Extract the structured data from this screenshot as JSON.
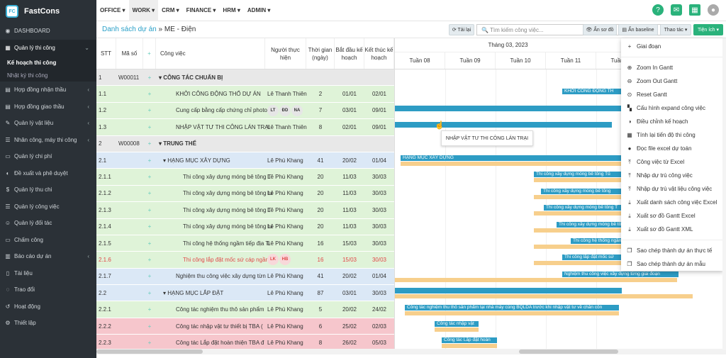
{
  "app": {
    "name": "FastCons",
    "logo_text": "FC"
  },
  "sidebar": {
    "items": [
      {
        "label": "DASHBOARD",
        "icon": "◉"
      },
      {
        "label": "Quản lý thi công",
        "icon": "▦",
        "chev": "⌄",
        "active": true
      },
      {
        "label": "Hợp đồng nhận thầu",
        "icon": "▤",
        "chev": "‹"
      },
      {
        "label": "Hợp đồng giao thầu",
        "icon": "▤",
        "chev": "‹"
      },
      {
        "label": "Quản lý vật liệu",
        "icon": "✎",
        "chev": "‹"
      },
      {
        "label": "Nhân công, máy thi công",
        "icon": "☰",
        "chev": "‹"
      },
      {
        "label": "Quản lý chi phí",
        "icon": "▭",
        "chev": ""
      },
      {
        "label": "Đề xuất và phê duyệt",
        "icon": "◐",
        "chev": ""
      },
      {
        "label": "Quản lý thu chi",
        "icon": "$",
        "chev": ""
      },
      {
        "label": "Quản lý công việc",
        "icon": "☰",
        "chev": ""
      },
      {
        "label": "Quản lý đối tác",
        "icon": "☺",
        "chev": ""
      },
      {
        "label": "Chấm công",
        "icon": "▭",
        "chev": ""
      },
      {
        "label": "Báo cáo dự án",
        "icon": "▥",
        "chev": "‹"
      },
      {
        "label": "Tài liệu",
        "icon": "▯",
        "chev": ""
      },
      {
        "label": "Trao đổi",
        "icon": "◌",
        "chev": ""
      },
      {
        "label": "Hoạt động",
        "icon": "↺",
        "chev": ""
      },
      {
        "label": "Thiết lập",
        "icon": "⚙",
        "chev": ""
      }
    ],
    "subitems": [
      {
        "label": "Kế hoạch thi công",
        "current": true
      },
      {
        "label": "Nhật ký thi công",
        "current": false
      }
    ]
  },
  "topmenu": [
    {
      "label": "OFFICE ▾"
    },
    {
      "label": "WORK ▾",
      "current": true
    },
    {
      "label": "CRM ▾"
    },
    {
      "label": "FINANCE ▾"
    },
    {
      "label": "HRM ▾"
    },
    {
      "label": "ADMIN ▾"
    }
  ],
  "breadcrumb": {
    "root": "Danh sách dự án",
    "sep": " » ",
    "current": "ME - Điện"
  },
  "toolbar": {
    "reload": "⟳ Tải lại",
    "search_placeholder": "🔍 Tìm kiếm công việc...",
    "search_arrow": "▾",
    "hide_diagram": "👁 Ẩn sơ đồ",
    "hide_baseline": "▤ Ẩn baseline",
    "actions": "Thao tác ▾",
    "utilities": "Tiện ích ▾"
  },
  "grid": {
    "headers": [
      "STT",
      "Mã số",
      "+",
      "Công việc",
      "Người thực hiện",
      "Thời gian (ngày)",
      "Bắt đầu kế hoạch",
      "Kết thúc kế hoạch"
    ],
    "rows": [
      {
        "stt": "1",
        "code": "W00011",
        "plus": "+",
        "task": "▾ CÔNG TÁC CHUẨN BỊ",
        "person": "",
        "dur": "",
        "start": "",
        "end": "",
        "bg": "gray",
        "bold": true
      },
      {
        "stt": "1.1",
        "code": "",
        "plus": "+",
        "task": "KHỞI CÔNG ĐỘNG THỔ DỰ ÁN",
        "person": "Lê Thanh Thiên",
        "dur": "2",
        "start": "01/01",
        "end": "02/01",
        "bg": "green",
        "indent": 28
      },
      {
        "stt": "1.2",
        "code": "",
        "plus": "+",
        "task": "Cung cấp bằng cấp chứng chỉ photo c",
        "person": "",
        "avatars": [
          "LT",
          "ĐD",
          "NA"
        ],
        "dur": "7",
        "start": "03/01",
        "end": "09/01",
        "bg": "green",
        "indent": 28
      },
      {
        "stt": "1.3",
        "code": "",
        "plus": "+",
        "task": "NHẬP VẬT TƯ THI CÔNG LÁN TRẠI",
        "person": "Lê Thanh Thiên",
        "dur": "8",
        "start": "02/01",
        "end": "09/01",
        "bg": "green",
        "indent": 28
      },
      {
        "stt": "2",
        "code": "W00008",
        "plus": "+",
        "task": "▾ TRUNG THẾ",
        "person": "",
        "dur": "",
        "start": "",
        "end": "",
        "bg": "gray",
        "bold": true
      },
      {
        "stt": "2.1",
        "code": "",
        "plus": "+",
        "task": "▾ HẠNG MỤC XÂY DỰNG",
        "person": "Lê Phú Khang",
        "dur": "41",
        "start": "20/02",
        "end": "01/04",
        "bg": "blue",
        "indent": 10
      },
      {
        "stt": "2.1.1",
        "code": "",
        "plus": "+",
        "task": "Thi công xây dựng móng bê tông T",
        "person": "Lê Phú Khang",
        "dur": "20",
        "start": "11/03",
        "end": "30/03",
        "bg": "green",
        "indent": 38
      },
      {
        "stt": "2.1.2",
        "code": "",
        "plus": "+",
        "task": "Thi công xây dựng móng bê tông tu",
        "person": "Lê Phú Khang",
        "dur": "20",
        "start": "11/03",
        "end": "30/03",
        "bg": "green",
        "indent": 38
      },
      {
        "stt": "2.1.3",
        "code": "",
        "plus": "+",
        "task": "Thi công xây dựng móng bê tông T",
        "person": "Lê Phú Khang",
        "dur": "20",
        "start": "11/03",
        "end": "30/03",
        "bg": "green",
        "indent": 38
      },
      {
        "stt": "2.1.4",
        "code": "",
        "plus": "+",
        "task": "Thi công xây dựng móng bê tông tu",
        "person": "Lê Phú Khang",
        "dur": "20",
        "start": "11/03",
        "end": "30/03",
        "bg": "green",
        "indent": 38
      },
      {
        "stt": "2.1.5",
        "code": "",
        "plus": "+",
        "task": "Thi công hệ thống ngầm tiếp địa Ti",
        "person": "Lê Phú Khang",
        "dur": "16",
        "start": "15/03",
        "end": "30/03",
        "bg": "green",
        "indent": 38
      },
      {
        "stt": "2.1.6",
        "code": "",
        "plus": "+",
        "task": "Thi công lắp đặt mốc sứ cáp ngầm",
        "person": "",
        "avatars": [
          "LK",
          "HB"
        ],
        "dur": "16",
        "start": "15/03",
        "end": "30/03",
        "bg": "green",
        "indent": 38,
        "red": true
      },
      {
        "stt": "2.1.7",
        "code": "",
        "plus": "+",
        "task": "Nghiệm thu công việc xây dựng từn",
        "person": "Lê Phú Khang",
        "dur": "41",
        "start": "20/02",
        "end": "01/04",
        "bg": "blue",
        "indent": 28
      },
      {
        "stt": "2.2",
        "code": "",
        "plus": "+",
        "task": "▾ HẠNG MỤC LẮP ĐẶT",
        "person": "Lê Phú Khang",
        "dur": "87",
        "start": "03/01",
        "end": "30/03",
        "bg": "blue",
        "indent": 10
      },
      {
        "stt": "2.2.1",
        "code": "",
        "plus": "+",
        "task": "Công tác nghiệm thu thô sản phẩm",
        "person": "Lê Phú Khang",
        "dur": "5",
        "start": "20/02",
        "end": "24/02",
        "bg": "green",
        "indent": 28
      },
      {
        "stt": "2.2.2",
        "code": "",
        "plus": "+",
        "task": "Công tác nhập vật tư thiết bị TBA (",
        "person": "Lê Phú Khang",
        "dur": "6",
        "start": "25/02",
        "end": "02/03",
        "bg": "pink",
        "indent": 28
      },
      {
        "stt": "2.2.3",
        "code": "",
        "plus": "+",
        "task": "Công tác Lắp đặt hoàn thiện TBA đ",
        "person": "Lê Phú Khang",
        "dur": "8",
        "start": "26/02",
        "end": "05/03",
        "bg": "pink",
        "indent": 28
      }
    ]
  },
  "gantt": {
    "month": "Tháng 03, 2023",
    "weeks": [
      "Tuần 08",
      "Tuần 09",
      "Tuần 10",
      "Tuần 11",
      "Tuần 12"
    ],
    "bars": [
      {
        "row": 1,
        "x": 236,
        "w": 84,
        "label": "KHỞI CÔNG ĐỘNG TH"
      },
      {
        "row": 2,
        "x": 0,
        "w": 320,
        "label": ""
      },
      {
        "row": 3,
        "x": 0,
        "w": 306,
        "label": ""
      },
      {
        "row": 5,
        "x": 8,
        "w": 312,
        "label": "HẠNG MỤC XÂY DỰNG",
        "base": {
          "x": 8,
          "w": 312
        }
      },
      {
        "row": 6,
        "x": 196,
        "w": 124,
        "label": "Thi công xây dựng móng bê tông Tủ",
        "base": {
          "x": 196,
          "w": 124
        }
      },
      {
        "row": 7,
        "x": 206,
        "w": 114,
        "label": "Thi công xây dựng móng bê tông",
        "base": {
          "x": 196,
          "w": 124
        }
      },
      {
        "row": 8,
        "x": 210,
        "w": 110,
        "label": "Thi công xây dựng móng bê tông T",
        "base": {
          "x": 196,
          "w": 124
        }
      },
      {
        "row": 9,
        "x": 228,
        "w": 92,
        "label": "Thi công xây dựng móng bê tông",
        "base": {
          "x": 196,
          "w": 124
        }
      },
      {
        "row": 10,
        "x": 248,
        "w": 72,
        "label": "Thi công hệ thống ngầm",
        "base": {
          "x": 196,
          "w": 124
        }
      },
      {
        "row": 11,
        "x": 236,
        "w": 84,
        "label": "Thi công lắp đặt mốc sứ",
        "base": {
          "x": 196,
          "w": 124
        }
      },
      {
        "row": 12,
        "x": 236,
        "w": 164,
        "label": "Nghiệm thu công việc xây dựng từng giai đoạn",
        "base": {
          "x": 0,
          "w": 398
        }
      },
      {
        "row": 13,
        "x": 0,
        "w": 320,
        "label": "",
        "base": {
          "x": 0,
          "w": 420
        }
      },
      {
        "row": 14,
        "x": 14,
        "w": 302,
        "label": "Công tác nghiệm thu thô sản phẩm tại nhà máy cùng BQLDA trước khi nhập vật tư về chân côn",
        "base": {
          "x": 14,
          "w": 302
        }
      },
      {
        "row": 15,
        "x": 56,
        "w": 62,
        "label": "Công tác nhập vật",
        "base": {
          "x": 56,
          "w": 62
        }
      },
      {
        "row": 16,
        "x": 66,
        "w": 78,
        "label": "Công tác Lắp đặt hoàn",
        "base": {
          "x": 66,
          "w": 78
        }
      }
    ],
    "tooltip": "NHẬP VẬT TƯ THI CÔNG LÁN TRẠI"
  },
  "menu_utilities": {
    "items": [
      {
        "label": "Giai đoạn",
        "icon": "+"
      },
      {
        "sep": true
      },
      {
        "label": "Zoom In Gantt",
        "icon": "⊕"
      },
      {
        "label": "Zoom Out Gantt",
        "icon": "⊖"
      },
      {
        "label": "Reset Gantt",
        "icon": "⊙"
      },
      {
        "label": "Cấu hình expand công việc",
        "icon": "▚"
      },
      {
        "label": "Điều chỉnh kế hoạch",
        "icon": "◑"
      },
      {
        "label": "Tính lại tiến độ thi công",
        "icon": "▦"
      },
      {
        "label": "Đọc file excel dự toán",
        "icon": "●"
      },
      {
        "label": "Công việc từ Excel",
        "icon": "⤒"
      },
      {
        "label": "Nhập dự trù công việc",
        "icon": "⤒"
      },
      {
        "label": "Nhập dự trù vật liệu công việc",
        "icon": "⤒"
      },
      {
        "label": "Xuất danh sách công việc Excel",
        "icon": "⤓"
      },
      {
        "label": "Xuất sơ đồ Gantt Excel",
        "icon": "⤓"
      },
      {
        "label": "Xuất sơ đồ Gantt XML",
        "icon": "⤓"
      },
      {
        "sep": true
      },
      {
        "label": "Sao chép thành dự án thực tế",
        "icon": "❐"
      },
      {
        "label": "Sao chép thành dự án mẫu",
        "icon": "❐"
      }
    ]
  }
}
